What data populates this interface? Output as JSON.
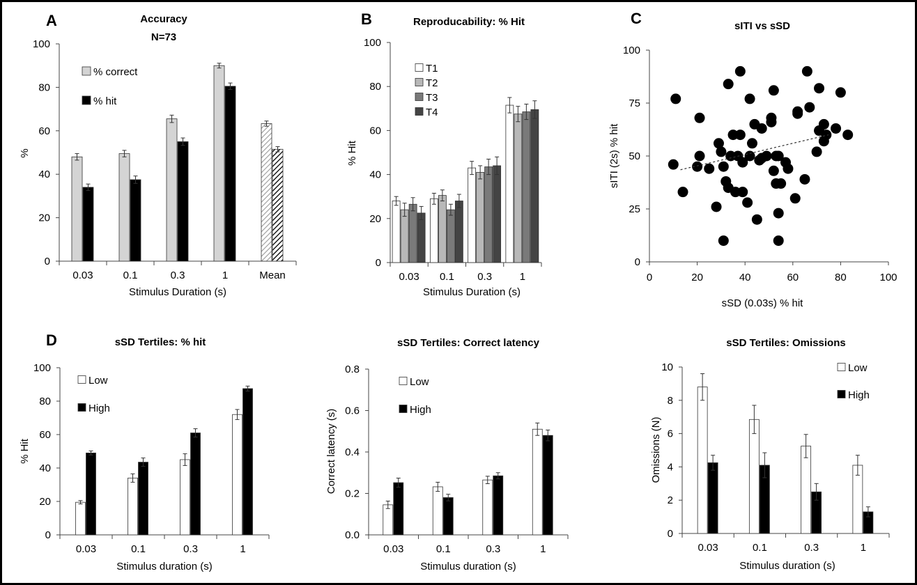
{
  "chart_data": [
    {
      "id": "A",
      "type": "bar",
      "panel_letter": "A",
      "title": "Accuracy",
      "subtitle": "N=73",
      "xlabel": "Stimulus Duration (s)",
      "ylabel": "%",
      "ylim": [
        0,
        100
      ],
      "yticks": [
        "0",
        "20",
        "40",
        "60",
        "80",
        "100"
      ],
      "categories": [
        "0.03",
        "0.1",
        "0.3",
        "1",
        "Mean"
      ],
      "series": [
        {
          "name": "% correct",
          "color": "#d4d4d4",
          "values": [
            48,
            49.5,
            65.5,
            90,
            63.3
          ],
          "errors": [
            1.5,
            1.5,
            1.7,
            1.1,
            1.2
          ]
        },
        {
          "name": "% hit",
          "color": "#000000",
          "values": [
            34,
            37.5,
            55,
            80.5,
            51.5
          ],
          "errors": [
            1.5,
            1.7,
            1.7,
            1.5,
            1.2
          ]
        }
      ],
      "legend": [
        "% correct",
        "% hit"
      ],
      "hatched_category": "Mean"
    },
    {
      "id": "B",
      "type": "bar",
      "panel_letter": "B",
      "title": "Reproducability: % Hit",
      "xlabel": "Stimulus Duration (s)",
      "ylabel": "% Hit",
      "ylim": [
        0,
        100
      ],
      "yticks": [
        "0",
        "20",
        "40",
        "60",
        "80",
        "100"
      ],
      "categories": [
        "0.03",
        "0.1",
        "0.3",
        "1"
      ],
      "series": [
        {
          "name": "T1",
          "color": "#ffffff",
          "values": [
            28,
            29,
            43,
            71.5
          ],
          "errors": [
            2,
            2.5,
            3,
            3.5
          ]
        },
        {
          "name": "T2",
          "color": "#b8b8b8",
          "values": [
            24,
            30.5,
            41,
            67.5
          ],
          "errors": [
            3,
            2.5,
            3,
            3.5
          ]
        },
        {
          "name": "T3",
          "color": "#7a7a7a",
          "values": [
            26.5,
            24,
            43.5,
            68.5
          ],
          "errors": [
            3,
            2.5,
            3.5,
            3.5
          ]
        },
        {
          "name": "T4",
          "color": "#444444",
          "values": [
            22.5,
            28,
            44,
            69.5
          ],
          "errors": [
            3,
            3,
            4,
            4
          ]
        }
      ],
      "legend": [
        "T1",
        "T2",
        "T3",
        "T4"
      ]
    },
    {
      "id": "C",
      "type": "scatter",
      "panel_letter": "C",
      "title": "sITI vs sSD",
      "xlabel": "sSD (0.03s) % hit",
      "ylabel": "sITI (2s) % hit",
      "xlim": [
        0,
        100
      ],
      "ylim": [
        0,
        100
      ],
      "xticks": [
        "0",
        "20",
        "40",
        "60",
        "80",
        "100"
      ],
      "yticks": [
        "0",
        "25",
        "50",
        "75",
        "100"
      ],
      "points": [
        [
          10,
          46
        ],
        [
          11,
          77
        ],
        [
          14,
          33
        ],
        [
          20,
          45
        ],
        [
          21,
          50
        ],
        [
          21,
          68
        ],
        [
          25,
          44
        ],
        [
          28,
          26
        ],
        [
          29,
          56
        ],
        [
          30,
          52
        ],
        [
          31,
          10
        ],
        [
          31,
          45
        ],
        [
          32,
          38
        ],
        [
          33,
          35
        ],
        [
          33,
          84
        ],
        [
          34,
          50
        ],
        [
          35,
          60
        ],
        [
          36,
          33
        ],
        [
          37,
          50
        ],
        [
          38,
          60
        ],
        [
          38,
          90
        ],
        [
          39,
          47
        ],
        [
          39,
          33
        ],
        [
          41,
          28
        ],
        [
          42,
          77
        ],
        [
          42,
          50
        ],
        [
          43,
          56
        ],
        [
          44,
          65
        ],
        [
          45,
          20
        ],
        [
          46,
          48
        ],
        [
          47,
          63
        ],
        [
          47,
          49
        ],
        [
          49,
          50
        ],
        [
          51,
          68
        ],
        [
          51,
          66
        ],
        [
          52,
          81
        ],
        [
          52,
          43
        ],
        [
          53,
          50
        ],
        [
          53,
          37
        ],
        [
          54,
          10
        ],
        [
          54,
          23
        ],
        [
          54,
          50
        ],
        [
          55,
          37
        ],
        [
          57,
          47
        ],
        [
          58,
          44
        ],
        [
          61,
          30
        ],
        [
          62,
          71
        ],
        [
          62,
          70
        ],
        [
          65,
          39
        ],
        [
          66,
          90
        ],
        [
          67,
          73
        ],
        [
          70,
          52
        ],
        [
          71,
          82
        ],
        [
          71,
          62
        ],
        [
          73,
          65
        ],
        [
          73,
          57
        ],
        [
          74,
          60
        ],
        [
          78,
          63
        ],
        [
          80,
          80
        ],
        [
          83,
          60
        ]
      ],
      "trendline": {
        "x1": 13,
        "y1": 43.5,
        "x2": 75,
        "y2": 60
      }
    },
    {
      "id": "D1",
      "type": "bar",
      "panel_letter": "D",
      "title": "sSD Tertiles: % hit",
      "xlabel": "Stimulus duration (s)",
      "ylabel": "% Hit",
      "ylim": [
        0,
        100
      ],
      "yticks": [
        "0",
        "20",
        "40",
        "60",
        "80",
        "100"
      ],
      "categories": [
        "0.03",
        "0.1",
        "0.3",
        "1"
      ],
      "series": [
        {
          "name": "Low",
          "color": "#ffffff",
          "values": [
            19.5,
            34,
            45,
            72
          ],
          "errors": [
            1,
            2.5,
            3.5,
            3
          ]
        },
        {
          "name": "High",
          "color": "#000000",
          "values": [
            49,
            43.5,
            61,
            87.5
          ],
          "errors": [
            1.2,
            2.5,
            2.5,
            1.5
          ]
        }
      ],
      "legend": [
        "Low",
        "High"
      ]
    },
    {
      "id": "D2",
      "type": "bar",
      "title": "sSD Tertiles: Correct latency",
      "xlabel": "Stimulus duration (s)",
      "ylabel": "Correct latency (s)",
      "ylim": [
        0,
        0.8
      ],
      "yticks": [
        "0.0",
        "0.2",
        "0.4",
        "0.6",
        "0.8"
      ],
      "categories": [
        "0.03",
        "0.1",
        "0.3",
        "1"
      ],
      "series": [
        {
          "name": "Low",
          "color": "#ffffff",
          "values": [
            0.145,
            0.232,
            0.265,
            0.51
          ],
          "errors": [
            0.018,
            0.022,
            0.018,
            0.03
          ]
        },
        {
          "name": "High",
          "color": "#000000",
          "values": [
            0.252,
            0.18,
            0.285,
            0.48
          ],
          "errors": [
            0.022,
            0.016,
            0.015,
            0.026
          ]
        }
      ],
      "legend": [
        "Low",
        "High"
      ]
    },
    {
      "id": "D3",
      "type": "bar",
      "title": "sSD Tertiles: Omissions",
      "xlabel": "Stimulus duration (s)",
      "ylabel": "Omissions (N)",
      "ylim": [
        0,
        10
      ],
      "yticks": [
        "0",
        "2",
        "4",
        "6",
        "8",
        "10"
      ],
      "categories": [
        "0.03",
        "0.1",
        "0.3",
        "1"
      ],
      "series": [
        {
          "name": "Low",
          "color": "#ffffff",
          "values": [
            8.8,
            6.85,
            5.25,
            4.1
          ],
          "errors": [
            0.8,
            0.85,
            0.7,
            0.6
          ]
        },
        {
          "name": "High",
          "color": "#000000",
          "values": [
            4.25,
            4.1,
            2.5,
            1.3
          ],
          "errors": [
            0.45,
            0.75,
            0.5,
            0.3
          ]
        }
      ],
      "legend": [
        "Low",
        "High"
      ]
    }
  ]
}
